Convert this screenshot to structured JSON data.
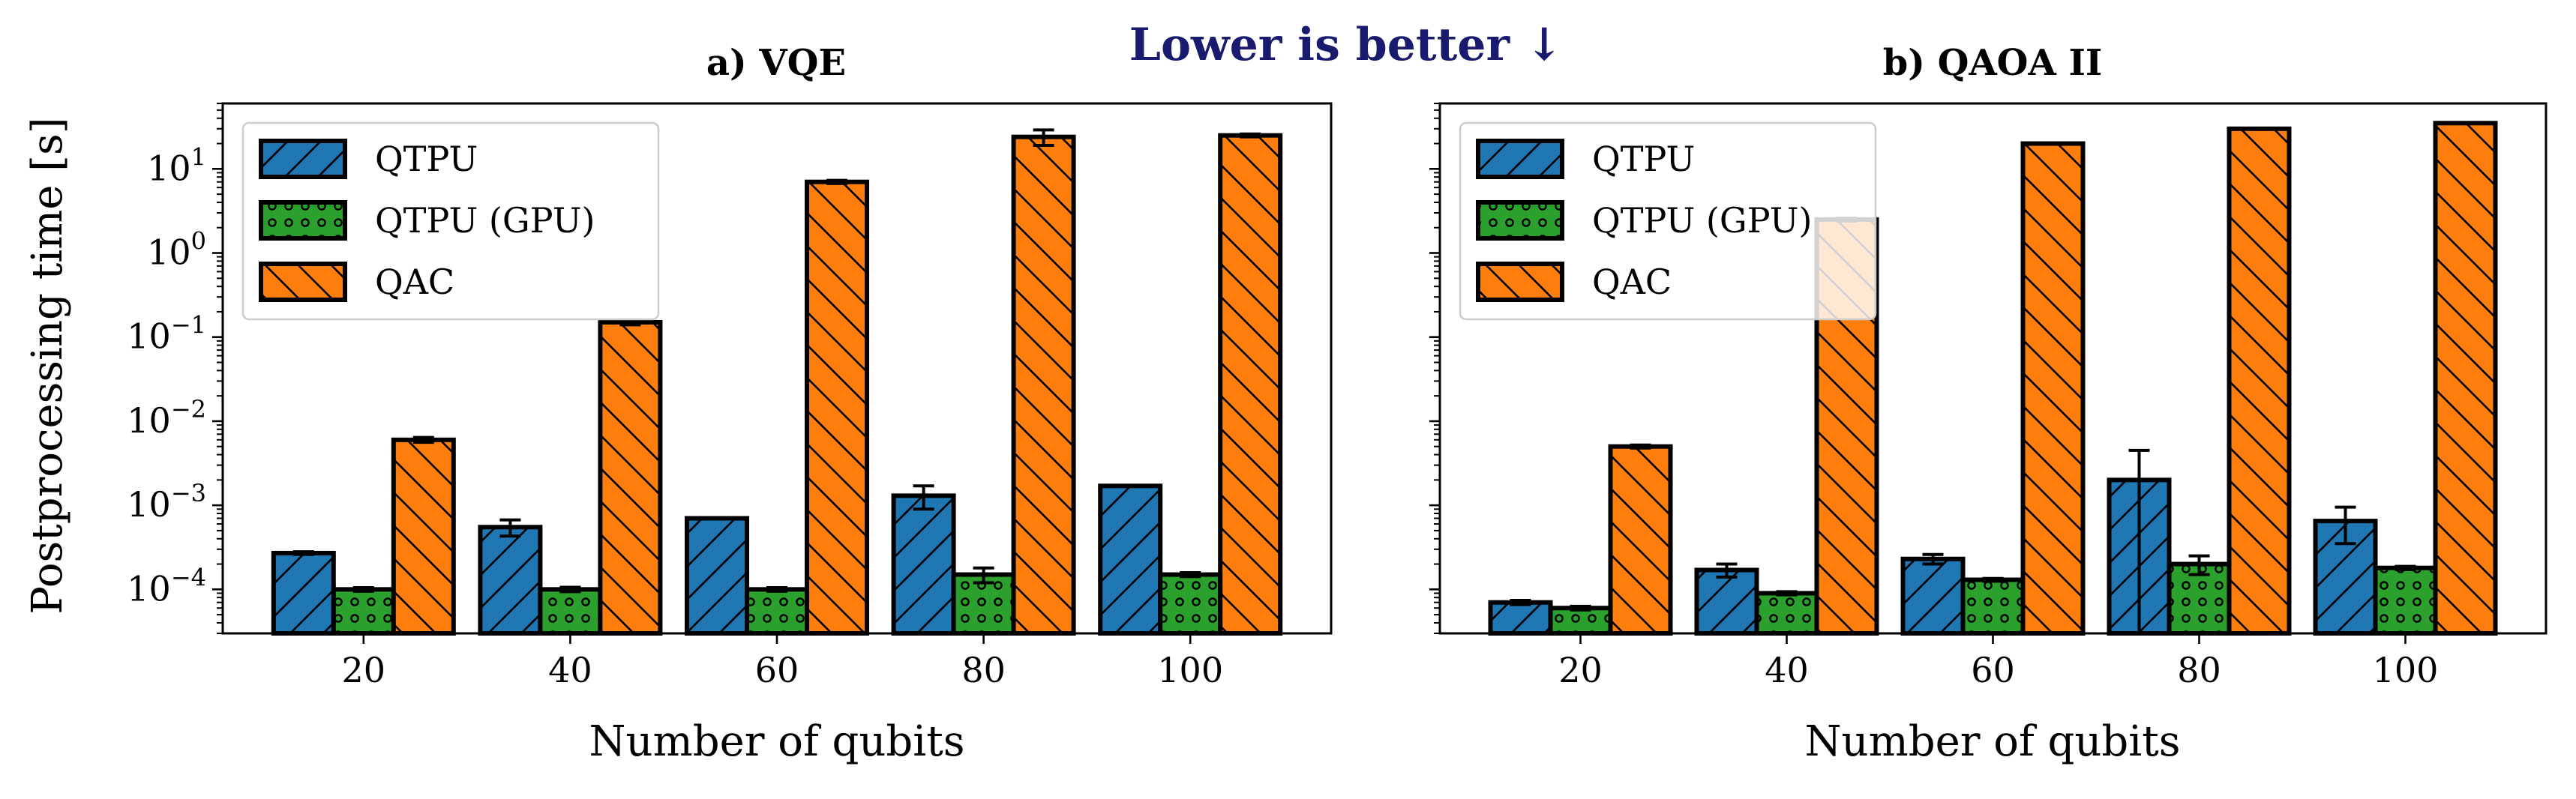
{
  "figure": {
    "banner": "Lower is better ↓",
    "banner_color": "#1a1a6e",
    "ylabel": "Postprocessing time [s]"
  },
  "legend": {
    "entries": [
      {
        "label": "QTPU",
        "color": "#1f77b4",
        "hatch": "diag-up"
      },
      {
        "label": "QTPU (GPU)",
        "color": "#2ca02c",
        "hatch": "dots"
      },
      {
        "label": "QAC",
        "color": "#ff7f0e",
        "hatch": "diag-down"
      }
    ]
  },
  "chart_data": [
    {
      "type": "bar",
      "title": "a) VQE",
      "xlabel": "Number of qubits",
      "ylabel": "Postprocessing time [s]",
      "yscale": "log",
      "ylim": [
        3e-05,
        60
      ],
      "categories": [
        "20",
        "40",
        "60",
        "80",
        "100"
      ],
      "y_ticks": [
        {
          "value": 0.0001,
          "base": "10",
          "exp": "−4"
        },
        {
          "value": 0.001,
          "base": "10",
          "exp": "−3"
        },
        {
          "value": 0.01,
          "base": "10",
          "exp": "−2"
        },
        {
          "value": 0.1,
          "base": "10",
          "exp": "−1"
        },
        {
          "value": 1,
          "base": "10",
          "exp": "0"
        },
        {
          "value": 10,
          "base": "10",
          "exp": "1"
        }
      ],
      "legend_position": "top-left",
      "series": [
        {
          "name": "QTPU",
          "values": [
            0.00027,
            0.00055,
            0.0007,
            0.0013,
            0.0017
          ],
          "errors": [
            1e-05,
            0.00012,
            2e-05,
            0.0004,
            2e-05
          ]
        },
        {
          "name": "QTPU (GPU)",
          "values": [
            0.0001,
            0.0001,
            0.0001,
            0.00015,
            0.00015
          ],
          "errors": [
            5e-06,
            6e-06,
            5e-06,
            3e-05,
            8e-06
          ]
        },
        {
          "name": "QAC",
          "values": [
            0.006,
            0.15,
            7,
            24,
            25
          ],
          "errors": [
            0.0004,
            0.01,
            0.3,
            5,
            1
          ]
        }
      ]
    },
    {
      "type": "bar",
      "title": "b) QAOA II",
      "xlabel": "Number of qubits",
      "ylabel": "",
      "yscale": "log",
      "ylim": [
        3e-05,
        60
      ],
      "categories": [
        "20",
        "40",
        "60",
        "80",
        "100"
      ],
      "y_ticks": [],
      "legend_position": "top-left",
      "series": [
        {
          "name": "QTPU",
          "values": [
            7e-05,
            0.00017,
            0.00023,
            0.002,
            0.00065
          ],
          "errors": [
            4e-06,
            3e-05,
            3e-05,
            0.0025,
            0.0003
          ]
        },
        {
          "name": "QTPU (GPU)",
          "values": [
            6e-05,
            9e-05,
            0.00013,
            0.0002,
            0.00018
          ],
          "errors": [
            3e-06,
            4e-06,
            5e-06,
            5e-05,
            8e-06
          ]
        },
        {
          "name": "QAC",
          "values": [
            0.005,
            2.5,
            20,
            30,
            35
          ],
          "errors": [
            0.0002,
            0.1,
            0.6,
            0.8,
            0.8
          ]
        }
      ]
    }
  ]
}
